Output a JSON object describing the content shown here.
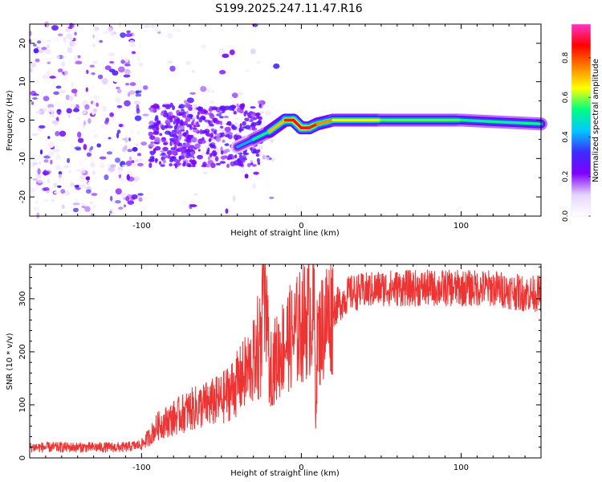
{
  "title": "S199.2025.247.11.47.R16",
  "chart_data": [
    {
      "type": "heatmap",
      "xlabel": "Height of straight line (km)",
      "ylabel": "Frequency (Hz)",
      "xlim": [
        -170,
        150
      ],
      "ylim": [
        -25,
        25
      ],
      "xticks": [
        -100,
        0,
        100
      ],
      "yticks": [
        -20,
        -10,
        0,
        10,
        20
      ],
      "colorbar": {
        "label": "Normalized spectral amplitude",
        "range": [
          0,
          0.97
        ],
        "ticks": [
          0.0,
          0.2,
          0.4,
          0.6,
          0.8
        ],
        "colormap": "rainbow (white → violet → blue → cyan → green → yellow → red → magenta)",
        "stops": [
          "#ffffff",
          "#e6d4ff",
          "#7f00ff",
          "#3b2cff",
          "#00c8ff",
          "#00ff80",
          "#ffff00",
          "#ff8000",
          "#ff0000",
          "#ff33cc"
        ]
      },
      "ridge": {
        "description": "Dominant-frequency ridge (frequency in Hz vs height in km)",
        "x": [
          -40,
          -30,
          -20,
          -10,
          -5,
          0,
          5,
          10,
          20,
          50,
          100,
          150
        ],
        "y": [
          -7,
          -5,
          -3,
          0,
          0,
          -2,
          -2,
          -1,
          0,
          0,
          0,
          -1
        ],
        "amplitude": [
          0.35,
          0.45,
          0.6,
          0.85,
          0.9,
          0.95,
          0.9,
          0.85,
          0.7,
          0.6,
          0.55,
          0.5
        ]
      },
      "noise_region": {
        "x_range": [
          -170,
          -30
        ],
        "y_range": [
          -25,
          25
        ],
        "amplitude_range": [
          0.0,
          0.25
        ]
      },
      "grid": false
    },
    {
      "type": "line",
      "xlabel": "Height of straight line (km)",
      "ylabel": "SNR (10 * v/v)",
      "xlim": [
        -170,
        150
      ],
      "ylim": [
        0,
        365
      ],
      "xticks": [
        -100,
        0,
        100
      ],
      "yticks": [
        0,
        100,
        200,
        300
      ],
      "color": "#ee3333",
      "series": [
        {
          "values_description": "noisy SNR trace; envelope points (x km, y)",
          "x": [
            -170,
            -140,
            -110,
            -100,
            -95,
            -90,
            -80,
            -70,
            -60,
            -50,
            -40,
            -30,
            -25,
            -24,
            -20,
            -15,
            -10,
            -5,
            0,
            5,
            8,
            9,
            10,
            15,
            20,
            30,
            50,
            80,
            100,
            120,
            140,
            150
          ],
          "y": [
            20,
            20,
            20,
            25,
            40,
            60,
            75,
            90,
            100,
            110,
            140,
            180,
            200,
            330,
            170,
            190,
            220,
            230,
            250,
            270,
            280,
            90,
            220,
            260,
            280,
            310,
            320,
            320,
            320,
            320,
            310,
            310
          ]
        }
      ],
      "grid": false
    }
  ]
}
